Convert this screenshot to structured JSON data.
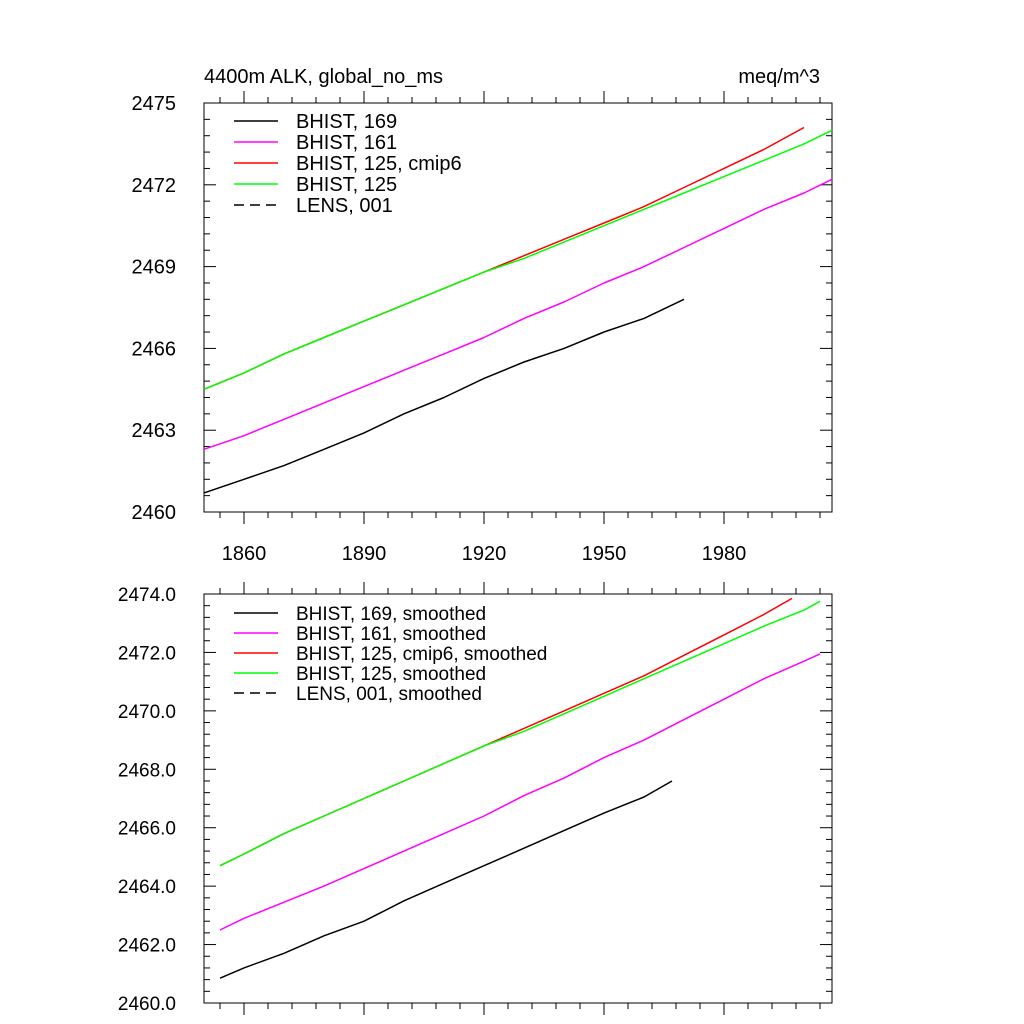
{
  "chart_data": [
    {
      "type": "line",
      "title_left": "4400m ALK, global_no_ms",
      "title_right": "meq/m^3",
      "xlabel": "",
      "ylabel": "",
      "xlim": [
        1850,
        2007
      ],
      "ylim": [
        2460,
        2475
      ],
      "xticks": [
        1860,
        1890,
        1920,
        1950,
        1980
      ],
      "xtick_labels": [
        "1860",
        "1890",
        "1920",
        "1950",
        "1980"
      ],
      "yticks": [
        2460,
        2463,
        2466,
        2469,
        2472,
        2475
      ],
      "ytick_labels": [
        "2460",
        "2463",
        "2466",
        "2469",
        "2472",
        "2475"
      ],
      "legend_position": "top-left",
      "series": [
        {
          "name": "BHIST, 169",
          "color": "#000000",
          "dash": "solid",
          "x": [
            1850,
            1860,
            1870,
            1880,
            1890,
            1900,
            1910,
            1920,
            1930,
            1940,
            1950,
            1960,
            1970
          ],
          "y": [
            2460.7,
            2461.2,
            2461.7,
            2462.3,
            2462.9,
            2463.6,
            2464.2,
            2464.9,
            2465.5,
            2466.0,
            2466.6,
            2467.1,
            2467.8
          ]
        },
        {
          "name": "BHIST, 161",
          "color": "#ff00ff",
          "dash": "solid",
          "x": [
            1850,
            1860,
            1870,
            1880,
            1890,
            1900,
            1910,
            1920,
            1930,
            1940,
            1950,
            1960,
            1970,
            1980,
            1990,
            2000,
            2007
          ],
          "y": [
            2462.3,
            2462.8,
            2463.4,
            2464.0,
            2464.6,
            2465.2,
            2465.8,
            2466.4,
            2467.1,
            2467.7,
            2468.4,
            2469.0,
            2469.7,
            2470.4,
            2471.1,
            2471.7,
            2472.2
          ]
        },
        {
          "name": "BHIST, 125, cmip6",
          "color": "#ff0000",
          "dash": "solid",
          "x": [
            1850,
            1860,
            1870,
            1880,
            1890,
            1900,
            1910,
            1920,
            1930,
            1940,
            1950,
            1960,
            1970,
            1980,
            1990,
            2000
          ],
          "y": [
            2464.5,
            2465.1,
            2465.8,
            2466.4,
            2467.0,
            2467.6,
            2468.2,
            2468.8,
            2469.4,
            2470.0,
            2470.6,
            2471.2,
            2471.9,
            2472.6,
            2473.3,
            2474.1
          ]
        },
        {
          "name": "BHIST, 125",
          "color": "#00ff00",
          "dash": "solid",
          "x": [
            1850,
            1860,
            1870,
            1880,
            1890,
            1900,
            1910,
            1920,
            1930,
            1940,
            1950,
            1960,
            1970,
            1980,
            1990,
            2000,
            2007
          ],
          "y": [
            2464.5,
            2465.1,
            2465.8,
            2466.4,
            2467.0,
            2467.6,
            2468.2,
            2468.8,
            2469.3,
            2469.9,
            2470.5,
            2471.1,
            2471.7,
            2472.3,
            2472.9,
            2473.5,
            2474.0
          ]
        },
        {
          "name": "LENS, 001",
          "color": "#000000",
          "dash": "dashed",
          "x": [],
          "y": []
        }
      ]
    },
    {
      "type": "line",
      "title_left": "",
      "title_right": "",
      "xlabel": "",
      "ylabel": "",
      "xlim": [
        1850,
        2007
      ],
      "ylim": [
        2460.0,
        2474.0
      ],
      "xticks": [
        1860,
        1890,
        1920,
        1950,
        1980
      ],
      "xtick_labels": [],
      "yticks": [
        2460.0,
        2462.0,
        2464.0,
        2466.0,
        2468.0,
        2470.0,
        2472.0,
        2474.0
      ],
      "ytick_labels": [
        "2460.0",
        "2462.0",
        "2464.0",
        "2466.0",
        "2468.0",
        "2470.0",
        "2472.0",
        "2474.0"
      ],
      "legend_position": "top-left",
      "series": [
        {
          "name": "BHIST, 169, smoothed",
          "color": "#000000",
          "dash": "solid",
          "x": [
            1854,
            1860,
            1870,
            1880,
            1890,
            1900,
            1910,
            1920,
            1930,
            1940,
            1950,
            1960,
            1967
          ],
          "y": [
            2460.85,
            2461.2,
            2461.7,
            2462.3,
            2462.8,
            2463.5,
            2464.1,
            2464.7,
            2465.3,
            2465.9,
            2466.5,
            2467.05,
            2467.6
          ]
        },
        {
          "name": "BHIST, 161, smoothed",
          "color": "#ff00ff",
          "dash": "solid",
          "x": [
            1854,
            1860,
            1870,
            1880,
            1890,
            1900,
            1910,
            1920,
            1930,
            1940,
            1950,
            1960,
            1970,
            1980,
            1990,
            2000,
            2004
          ],
          "y": [
            2462.5,
            2462.9,
            2463.45,
            2464.0,
            2464.6,
            2465.2,
            2465.8,
            2466.4,
            2467.1,
            2467.7,
            2468.4,
            2469.0,
            2469.7,
            2470.4,
            2471.1,
            2471.7,
            2471.95
          ]
        },
        {
          "name": "BHIST, 125, cmip6, smoothed",
          "color": "#ff0000",
          "dash": "solid",
          "x": [
            1854,
            1860,
            1870,
            1880,
            1890,
            1900,
            1910,
            1920,
            1930,
            1940,
            1950,
            1960,
            1970,
            1980,
            1990,
            1997
          ],
          "y": [
            2464.7,
            2465.1,
            2465.8,
            2466.4,
            2467.0,
            2467.6,
            2468.2,
            2468.8,
            2469.4,
            2470.0,
            2470.6,
            2471.2,
            2471.9,
            2472.6,
            2473.3,
            2473.85
          ]
        },
        {
          "name": "BHIST, 125, smoothed",
          "color": "#00ff00",
          "dash": "solid",
          "x": [
            1854,
            1860,
            1870,
            1880,
            1890,
            1900,
            1910,
            1920,
            1930,
            1940,
            1950,
            1960,
            1970,
            1980,
            1990,
            2000,
            2004
          ],
          "y": [
            2464.7,
            2465.1,
            2465.8,
            2466.4,
            2467.0,
            2467.6,
            2468.2,
            2468.8,
            2469.3,
            2469.9,
            2470.5,
            2471.1,
            2471.7,
            2472.3,
            2472.9,
            2473.45,
            2473.75
          ]
        },
        {
          "name": "LENS, 001, smoothed",
          "color": "#000000",
          "dash": "dashed",
          "x": [],
          "y": []
        }
      ]
    }
  ]
}
